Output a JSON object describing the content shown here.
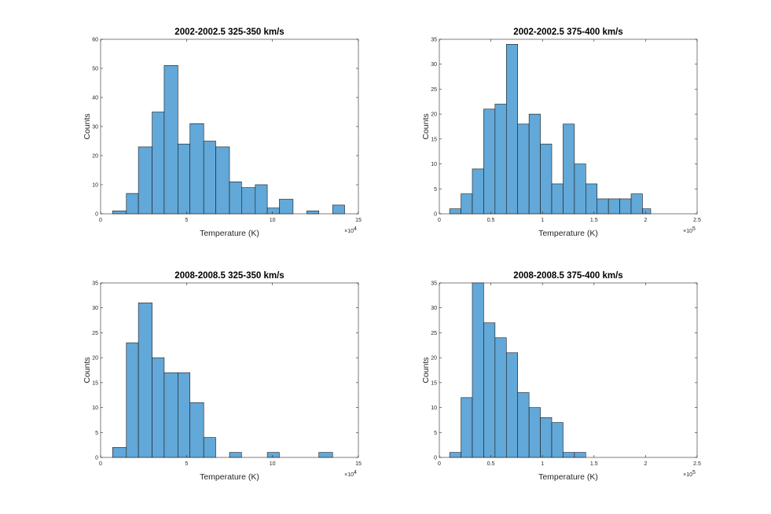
{
  "chart_data": [
    {
      "type": "bar",
      "title": "2002-2002.5 325-350 km/s",
      "xlabel": "Temperature (K)",
      "ylabel": "Counts",
      "x_multiplier": "×10",
      "x_exponent": "4",
      "xlim": [
        0,
        15
      ],
      "ylim": [
        0,
        60
      ],
      "xticks": [
        0,
        5,
        10,
        15
      ],
      "yticks": [
        0,
        10,
        20,
        30,
        40,
        50,
        60
      ],
      "bin_edges": [
        0.7,
        1.5,
        2.2,
        3.0,
        3.7,
        4.5,
        5.2,
        6.0,
        6.7,
        7.5,
        8.2,
        9.0,
        9.7,
        10.4,
        11.2,
        12.0,
        12.7,
        13.5,
        14.2
      ],
      "values": [
        1,
        7,
        23,
        35,
        51,
        24,
        31,
        25,
        23,
        11,
        9,
        10,
        2,
        5,
        0,
        1,
        0,
        3
      ],
      "bar_color": "#62A8D8"
    },
    {
      "type": "bar",
      "title": "2002-2002.5 375-400 km/s",
      "xlabel": "Temperature (K)",
      "ylabel": "Counts",
      "x_multiplier": "×10",
      "x_exponent": "5",
      "xlim": [
        0,
        2.5
      ],
      "ylim": [
        0,
        35
      ],
      "xticks": [
        0,
        0.5,
        1,
        1.5,
        2,
        2.5
      ],
      "yticks": [
        0,
        5,
        10,
        15,
        20,
        25,
        30,
        35
      ],
      "bin_edges": [
        0.1,
        0.21,
        0.32,
        0.43,
        0.54,
        0.65,
        0.76,
        0.87,
        0.98,
        1.09,
        1.2,
        1.31,
        1.42,
        1.53,
        1.64,
        1.75,
        1.86,
        1.97,
        2.05
      ],
      "values": [
        1,
        4,
        9,
        21,
        22,
        34,
        18,
        20,
        14,
        6,
        18,
        10,
        6,
        3,
        3,
        3,
        4,
        1
      ],
      "bar_color": "#62A8D8"
    },
    {
      "type": "bar",
      "title": "2008-2008.5 325-350 km/s",
      "xlabel": "Temperature (K)",
      "ylabel": "Counts",
      "x_multiplier": "×10",
      "x_exponent": "4",
      "xlim": [
        0,
        15
      ],
      "ylim": [
        0,
        35
      ],
      "xticks": [
        0,
        5,
        10,
        15
      ],
      "yticks": [
        0,
        5,
        10,
        15,
        20,
        25,
        30,
        35
      ],
      "bin_edges": [
        0.7,
        1.5,
        2.2,
        3.0,
        3.7,
        4.5,
        5.2,
        6.0,
        6.7,
        7.5,
        8.2,
        9.0,
        9.7,
        10.4,
        11.2,
        12.0,
        12.7,
        13.5
      ],
      "values": [
        2,
        23,
        31,
        20,
        17,
        17,
        11,
        4,
        0,
        1,
        0,
        0,
        1,
        0,
        0,
        0,
        1
      ],
      "bar_color": "#62A8D8"
    },
    {
      "type": "bar",
      "title": "2008-2008.5 375-400 km/s",
      "xlabel": "Temperature (K)",
      "ylabel": "Counts",
      "x_multiplier": "×10",
      "x_exponent": "5",
      "xlim": [
        0,
        2.5
      ],
      "ylim": [
        0,
        35
      ],
      "xticks": [
        0,
        0.5,
        1,
        1.5,
        2,
        2.5
      ],
      "yticks": [
        0,
        5,
        10,
        15,
        20,
        25,
        30,
        35
      ],
      "bin_edges": [
        0.1,
        0.21,
        0.32,
        0.43,
        0.54,
        0.65,
        0.76,
        0.87,
        0.98,
        1.09,
        1.2,
        1.31,
        1.42
      ],
      "values": [
        1,
        12,
        35,
        27,
        24,
        21,
        13,
        10,
        8,
        7,
        1,
        1
      ],
      "bar_color": "#62A8D8"
    }
  ]
}
